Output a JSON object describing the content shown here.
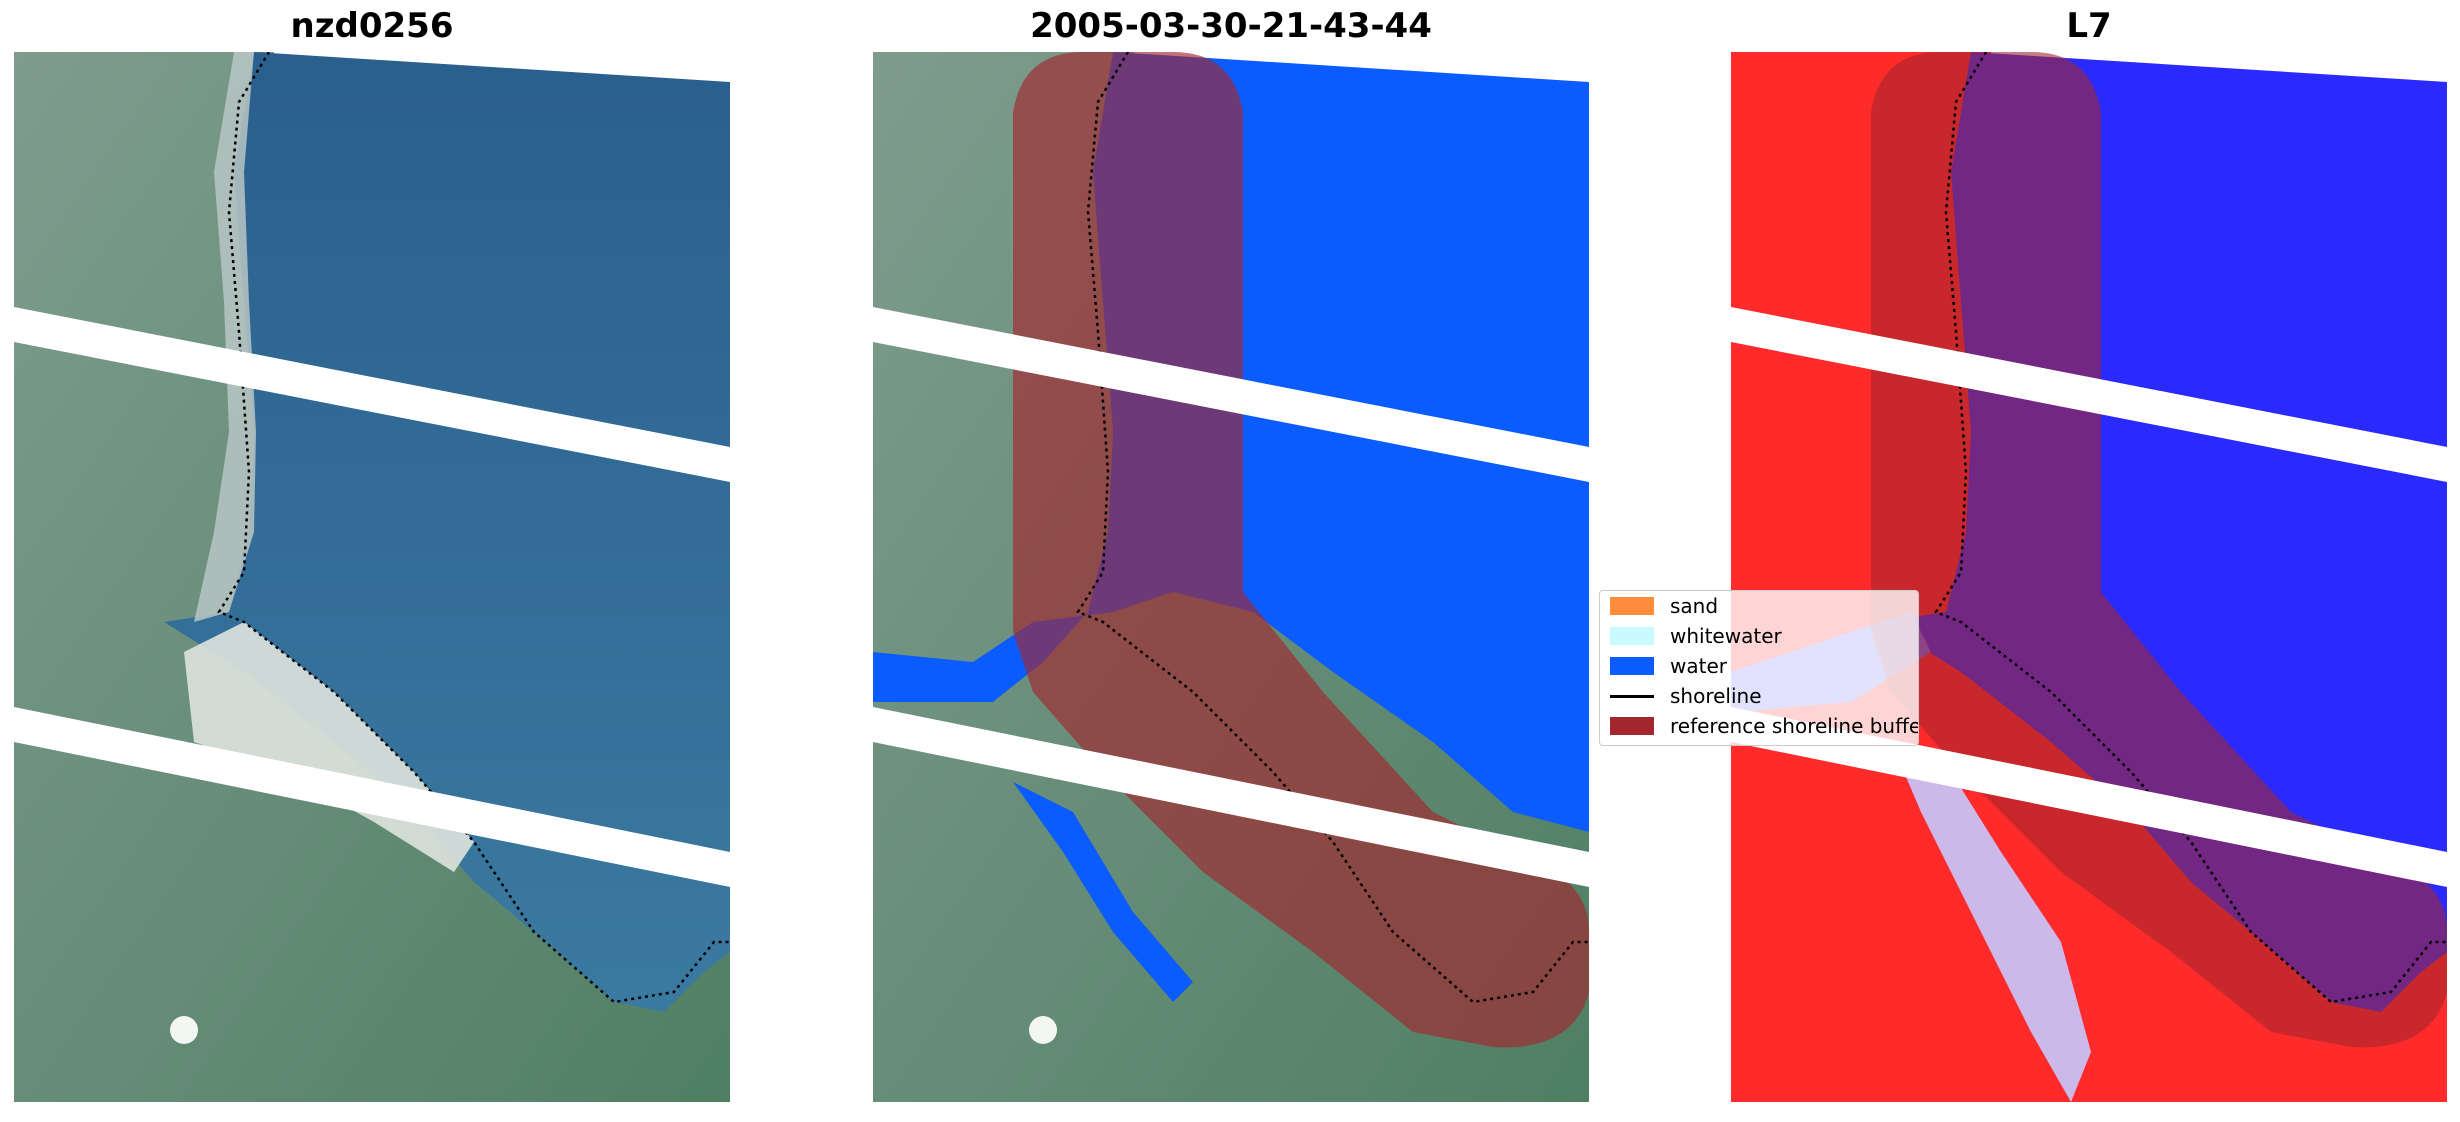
{
  "panels": [
    {
      "title": "nzd0256"
    },
    {
      "title": "2005-03-30-21-43-44"
    },
    {
      "title": "L7"
    }
  ],
  "legend": {
    "items": [
      {
        "label": "sand",
        "color": "#ff8c3a",
        "kind": "patch"
      },
      {
        "label": "whitewater",
        "color": "#c8faff",
        "kind": "patch"
      },
      {
        "label": "water",
        "color": "#0a5cff",
        "kind": "patch"
      },
      {
        "label": "shoreline",
        "color": "#000000",
        "kind": "line"
      },
      {
        "label": "reference shoreline buffer",
        "color": "#a3262e",
        "kind": "patch"
      }
    ]
  },
  "colors": {
    "water_rgb": "#2e6a99",
    "land_rgb": "#5e8a78",
    "classified_water": "#0a5cff",
    "index_red": "#ff2020",
    "index_blue": "#2020ff",
    "buffer": "#a3262e"
  }
}
